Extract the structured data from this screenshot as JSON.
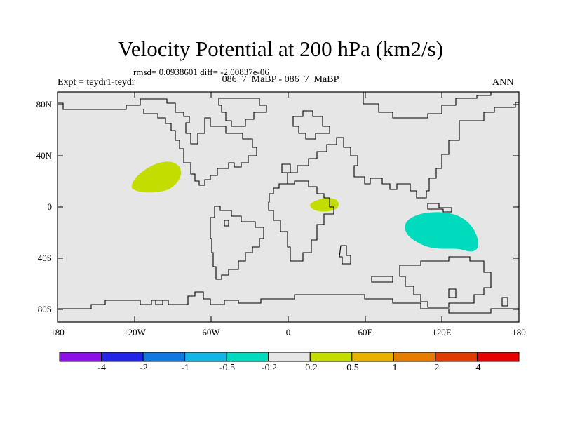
{
  "title": "Velocity Potential at 200 hPa (km2/s)",
  "stats": "rmsd= 0.0938601  diff= -2.00837e-06",
  "expt_label": "Expt = teydr1-teydr",
  "case_label": "086_7_MaBP - 086_7_MaBP",
  "season": "ANN",
  "map": {
    "background_color": "#e6e6e6",
    "y_ticks": [
      "80N",
      "40N",
      "0",
      "40S",
      "80S"
    ],
    "x_ticks": [
      "180",
      "120W",
      "60W",
      "0",
      "60E",
      "120E",
      "180"
    ],
    "anomalies": [
      {
        "name": "positive-anomaly-east-pacific",
        "category": "0.2 to 0.5",
        "color": "#c4dd00"
      },
      {
        "name": "positive-anomaly-africa",
        "category": "0.2 to 0.5",
        "color": "#c4dd00"
      },
      {
        "name": "negative-anomaly-indian-ocean",
        "category": "-0.5 to -0.2",
        "color": "#00dbbe"
      }
    ]
  },
  "colorbar": {
    "labels": [
      "-4",
      "-2",
      "-1",
      "-0.5",
      "-0.2",
      "0.2",
      "0.5",
      "1",
      "2",
      "4"
    ],
    "colors": [
      "#8a12e6",
      "#2424e6",
      "#1078e0",
      "#12b6e6",
      "#00dbbe",
      "#e6e6e6",
      "#c4dd00",
      "#e6b400",
      "#e67c00",
      "#e03c00",
      "#e60000"
    ]
  }
}
